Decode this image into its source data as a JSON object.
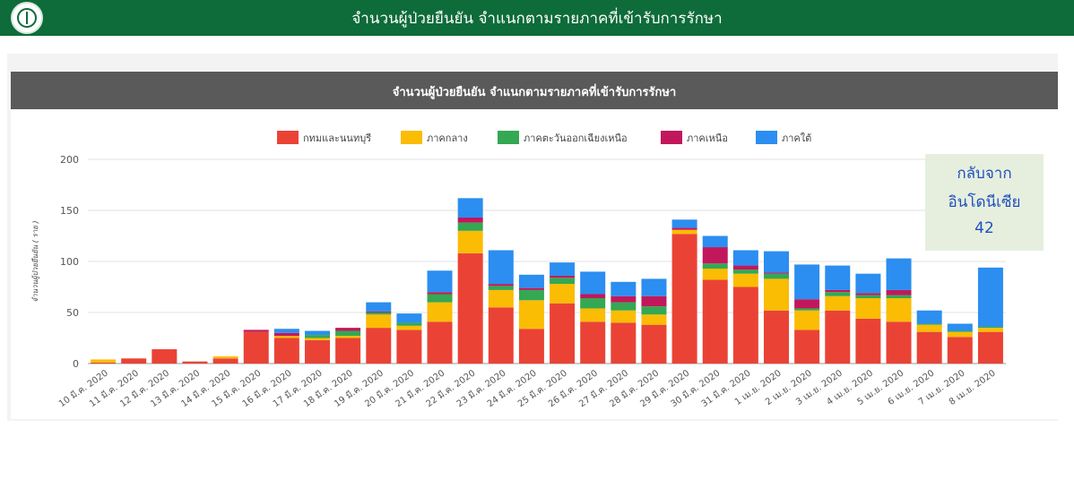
{
  "header": {
    "title": "จำนวนผู้ป่วยยืนยัน จำแนกตามรายภาคที่เข้ารับการรักษา"
  },
  "card": {
    "title": "จำนวนผู้ป่วยยืนยัน จำแนกตามรายภาคที่เข้ารับการรักษา"
  },
  "note": {
    "line1": "กลับจาก",
    "line2": "อินโดนีเซีย",
    "line3": "42"
  },
  "chart_data": {
    "type": "bar",
    "stacked": true,
    "title": "",
    "ylabel": "จำนวนผู้ป่วยยืนยัน ( ราย )",
    "xlabel": "",
    "ylim": [
      0,
      200
    ],
    "yticks": [
      0,
      50,
      100,
      150,
      200
    ],
    "grid": true,
    "legend_position": "top",
    "categories": [
      "10 มี.ค. 2020",
      "11 มี.ค. 2020",
      "12 มี.ค. 2020",
      "13 มี.ค. 2020",
      "14 มี.ค. 2020",
      "15 มี.ค. 2020",
      "16 มี.ค. 2020",
      "17 มี.ค. 2020",
      "18 มี.ค. 2020",
      "19 มี.ค. 2020",
      "20 มี.ค. 2020",
      "21 มี.ค. 2020",
      "22 มี.ค. 2020",
      "23 มี.ค. 2020",
      "24 มี.ค. 2020",
      "25 มี.ค. 2020",
      "26 มี.ค. 2020",
      "27 มี.ค. 2020",
      "28 มี.ค. 2020",
      "29 มี.ค. 2020",
      "30 มี.ค. 2020",
      "31 มี.ค. 2020",
      "1 เม.ย. 2020",
      "2 เม.ย. 2020",
      "3 เม.ย. 2020",
      "4 เม.ย. 2020",
      "5 เม.ย. 2020",
      "6 เม.ย. 2020",
      "7 เม.ย. 2020",
      "8 เม.ย. 2020"
    ],
    "series": [
      {
        "name": "กทมและนนทบุรี",
        "color": "#ea4335",
        "values": [
          1,
          5,
          14,
          2,
          5,
          31,
          25,
          23,
          25,
          35,
          33,
          41,
          108,
          55,
          34,
          59,
          41,
          40,
          38,
          127,
          82,
          75,
          52,
          33,
          52,
          44,
          41,
          31,
          26,
          31
        ]
      },
      {
        "name": "ภาคกลาง",
        "color": "#fbbc04",
        "values": [
          3,
          0,
          0,
          0,
          2,
          0,
          2,
          2,
          2,
          13,
          4,
          19,
          22,
          17,
          28,
          19,
          13,
          12,
          10,
          4,
          11,
          13,
          31,
          19,
          14,
          20,
          23,
          7,
          5,
          4
        ]
      },
      {
        "name": "ภาคตะวันออกเฉียงเหนือ",
        "color": "#34a853",
        "values": [
          0,
          0,
          0,
          0,
          0,
          0,
          0,
          3,
          5,
          2,
          3,
          8,
          8,
          4,
          10,
          6,
          10,
          8,
          8,
          0,
          5,
          4,
          5,
          2,
          4,
          3,
          3,
          1,
          1,
          1
        ]
      },
      {
        "name": "ภาคเหนือ",
        "color": "#c2185b",
        "values": [
          0,
          0,
          0,
          0,
          0,
          2,
          3,
          0,
          3,
          1,
          0,
          2,
          5,
          2,
          2,
          2,
          4,
          6,
          10,
          2,
          16,
          4,
          1,
          9,
          2,
          2,
          5,
          0,
          0,
          0
        ]
      },
      {
        "name": "ภาคใต้",
        "color": "#2b8ef0",
        "values": [
          0,
          0,
          0,
          0,
          0,
          0,
          4,
          4,
          0,
          9,
          9,
          21,
          19,
          33,
          13,
          13,
          22,
          14,
          17,
          8,
          11,
          15,
          21,
          34,
          24,
          19,
          31,
          13,
          7,
          58
        ]
      }
    ]
  }
}
